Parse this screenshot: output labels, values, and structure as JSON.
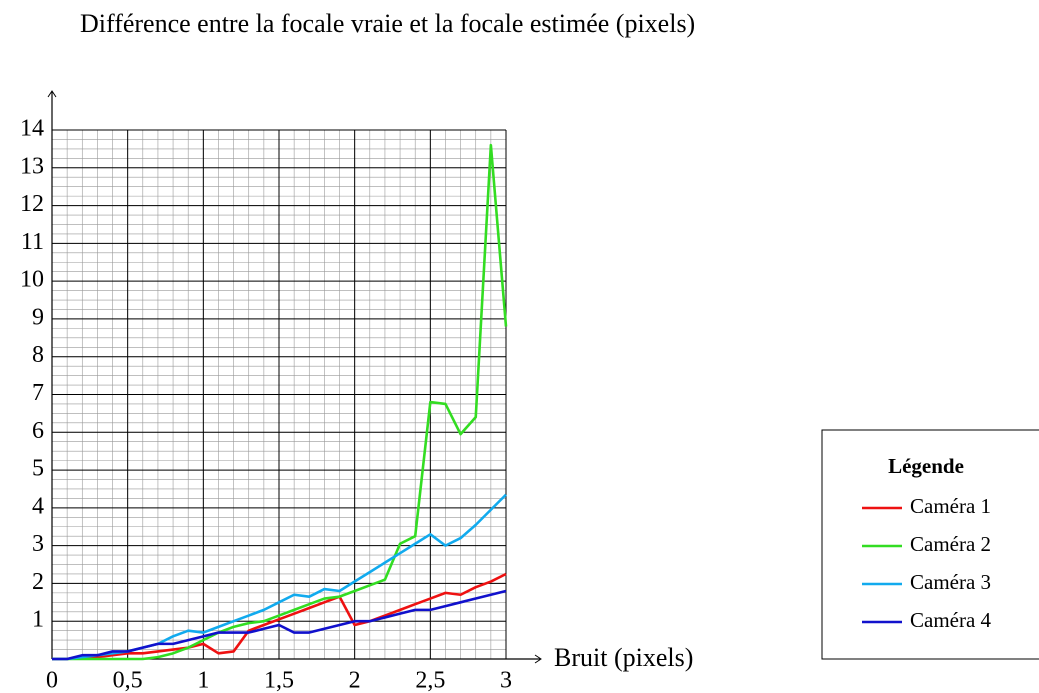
{
  "chart_data": {
    "type": "line",
    "y_label": "Différence entre la focale vraie et la focale estimée (pixels)",
    "x_label": "Bruit (pixels)",
    "legend_title": "Légende",
    "legend": "right",
    "grid": true,
    "x": [
      0,
      0.1,
      0.2,
      0.3,
      0.4,
      0.5,
      0.6,
      0.7,
      0.8,
      0.9,
      1.0,
      1.1,
      1.2,
      1.3,
      1.4,
      1.5,
      1.6,
      1.7,
      1.8,
      1.9,
      2.0,
      2.1,
      2.2,
      2.3,
      2.4,
      2.5,
      2.6,
      2.7,
      2.8,
      2.9,
      3.0
    ],
    "series": [
      {
        "name": "Caméra 1",
        "color": "#ee1111",
        "values": [
          0,
          0,
          0.05,
          0.05,
          0.1,
          0.15,
          0.15,
          0.2,
          0.25,
          0.3,
          0.4,
          0.15,
          0.2,
          0.75,
          0.9,
          1.05,
          1.2,
          1.35,
          1.5,
          1.65,
          0.9,
          1.0,
          1.15,
          1.3,
          1.45,
          1.6,
          1.75,
          1.7,
          1.9,
          2.05,
          2.25
        ]
      },
      {
        "name": "Caméra 2",
        "color": "#33dd22",
        "values": [
          0,
          0,
          0,
          0,
          0,
          0,
          0,
          0.05,
          0.15,
          0.3,
          0.5,
          0.7,
          0.85,
          0.95,
          1.0,
          1.15,
          1.3,
          1.45,
          1.6,
          1.65,
          1.8,
          1.95,
          2.1,
          3.05,
          3.25,
          6.8,
          6.75,
          5.95,
          6.4,
          13.6,
          8.8
        ]
      },
      {
        "name": "Caméra 3",
        "color": "#11aaee",
        "values": [
          0,
          0,
          0.05,
          0.1,
          0.15,
          0.2,
          0.3,
          0.4,
          0.6,
          0.75,
          0.7,
          0.85,
          1.0,
          1.15,
          1.3,
          1.5,
          1.7,
          1.65,
          1.85,
          1.8,
          2.05,
          2.3,
          2.55,
          2.8,
          3.05,
          3.3,
          3.0,
          3.2,
          3.55,
          3.95,
          4.35
        ]
      },
      {
        "name": "Caméra 4",
        "color": "#1111cc",
        "values": [
          0,
          0,
          0.1,
          0.1,
          0.2,
          0.2,
          0.3,
          0.4,
          0.4,
          0.5,
          0.6,
          0.7,
          0.7,
          0.7,
          0.8,
          0.9,
          0.7,
          0.7,
          0.8,
          0.9,
          1.0,
          1.0,
          1.1,
          1.2,
          1.3,
          1.3,
          1.4,
          1.5,
          1.6,
          1.7,
          1.8
        ]
      }
    ],
    "xlim": [
      0,
      3
    ],
    "xticks": [
      0,
      {
        "value": 0.5,
        "label": "0,5"
      },
      1,
      {
        "value": 1.5,
        "label": "1,5"
      },
      2,
      {
        "value": 2.5,
        "label": "2,5"
      },
      3
    ],
    "ylim": [
      0,
      14
    ],
    "yticks": [
      1,
      2,
      3,
      4,
      5,
      6,
      7,
      8,
      9,
      10,
      11,
      12,
      13,
      14
    ]
  }
}
